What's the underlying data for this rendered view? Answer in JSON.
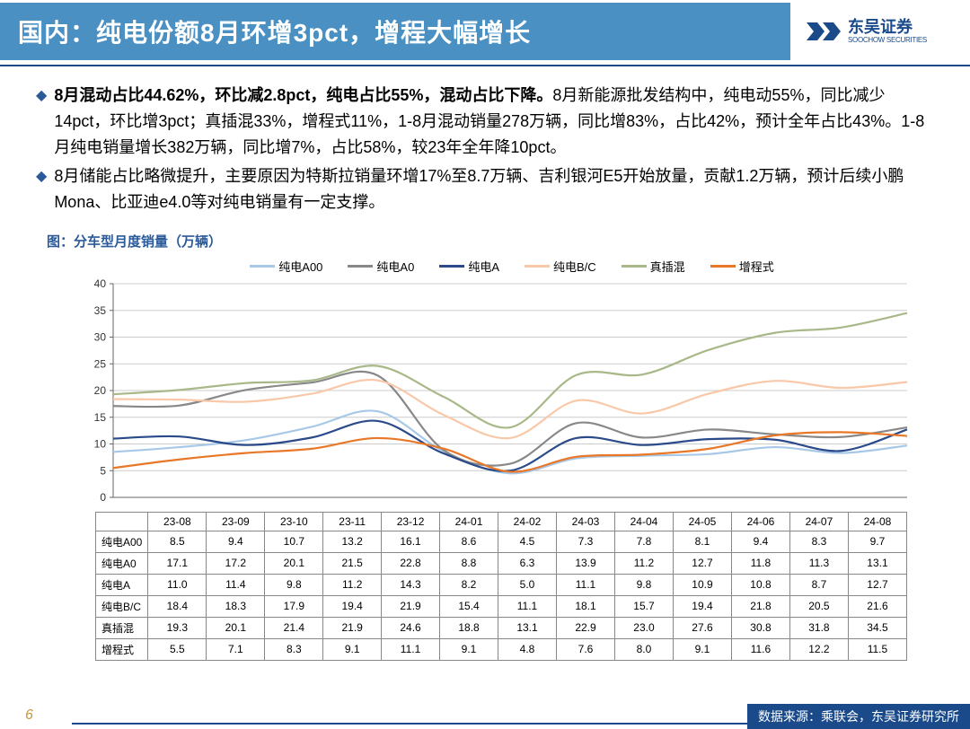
{
  "header": {
    "title": "国内：纯电份额8月环增3pct，增程大幅增长",
    "logo_cn": "东吴证券",
    "logo_en": "SOOCHOW SECURITIES"
  },
  "bullets": [
    {
      "bold": "8月混动占比44.62%，环比减2.8pct，纯电占比55%，混动占比下降。",
      "rest": "8月新能源批发结构中，纯电动55%，同比减少14pct，环比增3pct；真插混33%，增程式11%，1-8月混动销量278万辆，同比增83%，占比42%，预计全年占比43%。1-8月纯电销量增长382万辆，同比增7%，占比58%，较23年全年降10pct。"
    },
    {
      "bold": "",
      "rest": "8月储能占比略微提升，主要原因为特斯拉销量环增17%至8.7万辆、吉利银河E5开始放量，贡献1.2万辆，预计后续小鹏Mona、比亚迪e4.0等对纯电销量有一定支撑。"
    }
  ],
  "chart": {
    "title": "图：分车型月度销量（万辆）",
    "y_max": 40,
    "y_step": 5,
    "y_ticks": [
      0,
      5,
      10,
      15,
      20,
      25,
      30,
      35,
      40
    ],
    "x_labels": [
      "23-08",
      "23-09",
      "23-10",
      "23-11",
      "23-12",
      "24-01",
      "24-02",
      "24-03",
      "24-04",
      "24-05",
      "24-06",
      "24-07",
      "24-08"
    ],
    "series": [
      {
        "name": "纯电A00",
        "color": "#a8c8e8",
        "values": [
          8.5,
          9.4,
          10.7,
          13.2,
          16.1,
          8.6,
          4.5,
          7.3,
          7.8,
          8.1,
          9.4,
          8.3,
          9.7
        ]
      },
      {
        "name": "纯电A0",
        "color": "#888888",
        "values": [
          17.1,
          17.2,
          20.1,
          21.5,
          22.8,
          8.8,
          6.3,
          13.9,
          11.2,
          12.7,
          11.8,
          11.3,
          13.1
        ]
      },
      {
        "name": "纯电A",
        "color": "#2a4a8a",
        "values": [
          11.0,
          11.4,
          9.8,
          11.2,
          14.3,
          8.2,
          5.0,
          11.1,
          9.8,
          10.9,
          10.8,
          8.7,
          12.7
        ]
      },
      {
        "name": "纯电B/C",
        "color": "#f8c8a8",
        "values": [
          18.4,
          18.3,
          17.9,
          19.4,
          21.9,
          15.4,
          11.1,
          18.1,
          15.7,
          19.4,
          21.8,
          20.5,
          21.6
        ]
      },
      {
        "name": "真插混",
        "color": "#a8b888",
        "values": [
          19.3,
          20.1,
          21.4,
          21.9,
          24.6,
          18.8,
          13.1,
          22.9,
          23.0,
          27.6,
          30.8,
          31.8,
          34.5
        ]
      },
      {
        "name": "增程式",
        "color": "#e87828",
        "values": [
          5.5,
          7.1,
          8.3,
          9.1,
          11.1,
          9.1,
          4.8,
          7.6,
          8.0,
          9.1,
          11.6,
          12.2,
          11.5
        ]
      }
    ],
    "grid_color": "#cccccc",
    "axis_color": "#666666",
    "line_width": 2.2,
    "plot_bg": "#ffffff"
  },
  "footer": {
    "page": "6",
    "source": "数据来源：乘联会，东吴证券研究所"
  }
}
